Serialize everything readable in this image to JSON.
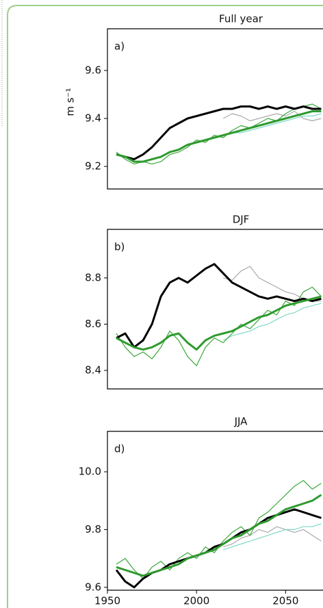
{
  "chart_data": [
    {
      "type": "line",
      "title": "Full year",
      "label": "a)",
      "ylabel": "m s⁻¹",
      "x": [
        1955,
        1960,
        1965,
        1970,
        1975,
        1980,
        1985,
        1990,
        1995,
        2000,
        2005,
        2010,
        2015,
        2020,
        2025,
        2030,
        2035,
        2040,
        2045,
        2050,
        2055,
        2060,
        2065,
        2070
      ],
      "xlim": [
        1950,
        2071
      ],
      "ylim": [
        9.106,
        9.774
      ],
      "yticks": [
        9.2,
        9.4,
        9.6
      ],
      "series": [
        {
          "color": "#aaaaaa",
          "linewidth": 1.2,
          "values": [
            null,
            null,
            null,
            null,
            null,
            null,
            null,
            null,
            null,
            null,
            null,
            null,
            9.4,
            9.42,
            9.41,
            9.39,
            9.4,
            9.41,
            9.42,
            9.41,
            9.43,
            9.4,
            9.39,
            9.4
          ]
        },
        {
          "color": "#7fd8c6",
          "linewidth": 1.2,
          "values": [
            null,
            null,
            null,
            null,
            null,
            null,
            null,
            null,
            null,
            null,
            null,
            null,
            9.33,
            9.34,
            9.34,
            9.35,
            9.36,
            9.37,
            9.38,
            9.39,
            9.4,
            9.41,
            9.41,
            9.42
          ]
        },
        {
          "color": "#3aa63a",
          "linewidth": 1.2,
          "values": [
            9.26,
            9.23,
            9.21,
            9.22,
            9.21,
            9.22,
            9.25,
            9.26,
            9.28,
            9.31,
            9.3,
            9.33,
            9.32,
            9.35,
            9.37,
            9.36,
            9.38,
            9.4,
            9.39,
            9.42,
            9.44,
            9.45,
            9.46,
            9.44
          ]
        },
        {
          "color": "#000000",
          "linewidth": 3,
          "values": [
            9.25,
            9.24,
            9.23,
            9.25,
            9.28,
            9.32,
            9.36,
            9.38,
            9.4,
            9.41,
            9.42,
            9.43,
            9.44,
            9.44,
            9.45,
            9.45,
            9.44,
            9.45,
            9.44,
            9.45,
            9.44,
            9.45,
            9.44,
            9.44
          ]
        },
        {
          "color": "#2e9a2e",
          "linewidth": 3,
          "values": [
            9.25,
            9.24,
            9.22,
            9.22,
            9.23,
            9.24,
            9.26,
            9.27,
            9.29,
            9.3,
            9.31,
            9.32,
            9.33,
            9.34,
            9.35,
            9.36,
            9.37,
            9.38,
            9.39,
            9.4,
            9.41,
            9.42,
            9.43,
            9.43
          ]
        }
      ]
    },
    {
      "type": "line",
      "title": "DJF",
      "label": "b)",
      "x": [
        1955,
        1960,
        1965,
        1970,
        1975,
        1980,
        1985,
        1990,
        1995,
        2000,
        2005,
        2010,
        2015,
        2020,
        2025,
        2030,
        2035,
        2040,
        2045,
        2050,
        2055,
        2060,
        2065,
        2070
      ],
      "xlim": [
        1950,
        2071
      ],
      "ylim": [
        8.32,
        9.01
      ],
      "yticks": [
        8.4,
        8.6,
        8.8
      ],
      "series": [
        {
          "color": "#aaaaaa",
          "linewidth": 1.2,
          "values": [
            null,
            null,
            null,
            null,
            null,
            null,
            null,
            null,
            null,
            null,
            null,
            null,
            8.8,
            8.79,
            8.83,
            8.85,
            8.8,
            8.78,
            8.76,
            8.74,
            8.73,
            8.71,
            8.7,
            8.7
          ]
        },
        {
          "color": "#7fd8c6",
          "linewidth": 1.2,
          "values": [
            null,
            null,
            null,
            null,
            null,
            null,
            null,
            null,
            null,
            null,
            null,
            null,
            8.53,
            8.55,
            8.56,
            8.57,
            8.59,
            8.6,
            8.62,
            8.64,
            8.65,
            8.67,
            8.68,
            8.69
          ]
        },
        {
          "color": "#3aa63a",
          "linewidth": 1.2,
          "values": [
            8.56,
            8.5,
            8.46,
            8.48,
            8.45,
            8.5,
            8.57,
            8.53,
            8.46,
            8.42,
            8.5,
            8.54,
            8.52,
            8.56,
            8.6,
            8.58,
            8.62,
            8.66,
            8.64,
            8.7,
            8.68,
            8.74,
            8.76,
            8.72
          ]
        },
        {
          "color": "#000000",
          "linewidth": 3,
          "values": [
            8.54,
            8.56,
            8.5,
            8.53,
            8.6,
            8.72,
            8.78,
            8.8,
            8.78,
            8.81,
            8.84,
            8.86,
            8.82,
            8.78,
            8.76,
            8.74,
            8.72,
            8.71,
            8.72,
            8.71,
            8.7,
            8.71,
            8.7,
            8.71
          ]
        },
        {
          "color": "#2e9a2e",
          "linewidth": 3,
          "values": [
            8.54,
            8.52,
            8.5,
            8.49,
            8.5,
            8.52,
            8.55,
            8.56,
            8.52,
            8.49,
            8.53,
            8.55,
            8.56,
            8.57,
            8.59,
            8.61,
            8.63,
            8.64,
            8.66,
            8.68,
            8.69,
            8.7,
            8.71,
            8.72
          ]
        }
      ]
    },
    {
      "type": "line",
      "title": "JJA",
      "label": "d)",
      "x": [
        1955,
        1960,
        1965,
        1970,
        1975,
        1980,
        1985,
        1990,
        1995,
        2000,
        2005,
        2010,
        2015,
        2020,
        2025,
        2030,
        2035,
        2040,
        2045,
        2050,
        2055,
        2060,
        2065,
        2070
      ],
      "xlim": [
        1950,
        2071
      ],
      "ylim": [
        9.59,
        10.14
      ],
      "yticks": [
        9.6,
        9.8,
        {
          "value": 10,
          "label": "10.0"
        }
      ],
      "xticks": [
        1950,
        2000,
        2050
      ],
      "series": [
        {
          "color": "#aaaaaa",
          "linewidth": 1.2,
          "values": [
            null,
            null,
            null,
            null,
            null,
            null,
            null,
            null,
            null,
            null,
            null,
            null,
            9.74,
            9.75,
            9.77,
            9.78,
            9.8,
            9.79,
            9.81,
            9.8,
            9.79,
            9.8,
            9.78,
            9.76
          ]
        },
        {
          "color": "#7fd8c6",
          "linewidth": 1.2,
          "values": [
            null,
            null,
            null,
            null,
            null,
            null,
            null,
            null,
            null,
            null,
            null,
            null,
            9.73,
            9.74,
            9.75,
            9.76,
            9.77,
            9.78,
            9.79,
            9.8,
            9.8,
            9.81,
            9.81,
            9.82
          ]
        },
        {
          "color": "#3aa63a",
          "linewidth": 1.2,
          "values": [
            9.68,
            9.7,
            9.66,
            9.63,
            9.67,
            9.69,
            9.66,
            9.7,
            9.72,
            9.7,
            9.74,
            9.72,
            9.76,
            9.79,
            9.81,
            9.78,
            9.84,
            9.86,
            9.89,
            9.92,
            9.95,
            9.97,
            9.94,
            9.96
          ]
        },
        {
          "color": "#000000",
          "linewidth": 3,
          "values": [
            9.66,
            9.62,
            9.6,
            9.63,
            9.65,
            9.66,
            9.68,
            9.69,
            9.7,
            9.71,
            9.72,
            9.74,
            9.75,
            9.77,
            9.79,
            9.8,
            9.82,
            9.84,
            9.85,
            9.86,
            9.87,
            9.86,
            9.85,
            9.84
          ]
        },
        {
          "color": "#2e9a2e",
          "linewidth": 3,
          "values": [
            9.67,
            9.66,
            9.65,
            9.64,
            9.65,
            9.66,
            9.67,
            9.68,
            9.7,
            9.71,
            9.72,
            9.73,
            9.75,
            9.77,
            9.78,
            9.8,
            9.82,
            9.83,
            9.85,
            9.87,
            9.88,
            9.89,
            9.9,
            9.92
          ]
        }
      ]
    }
  ]
}
